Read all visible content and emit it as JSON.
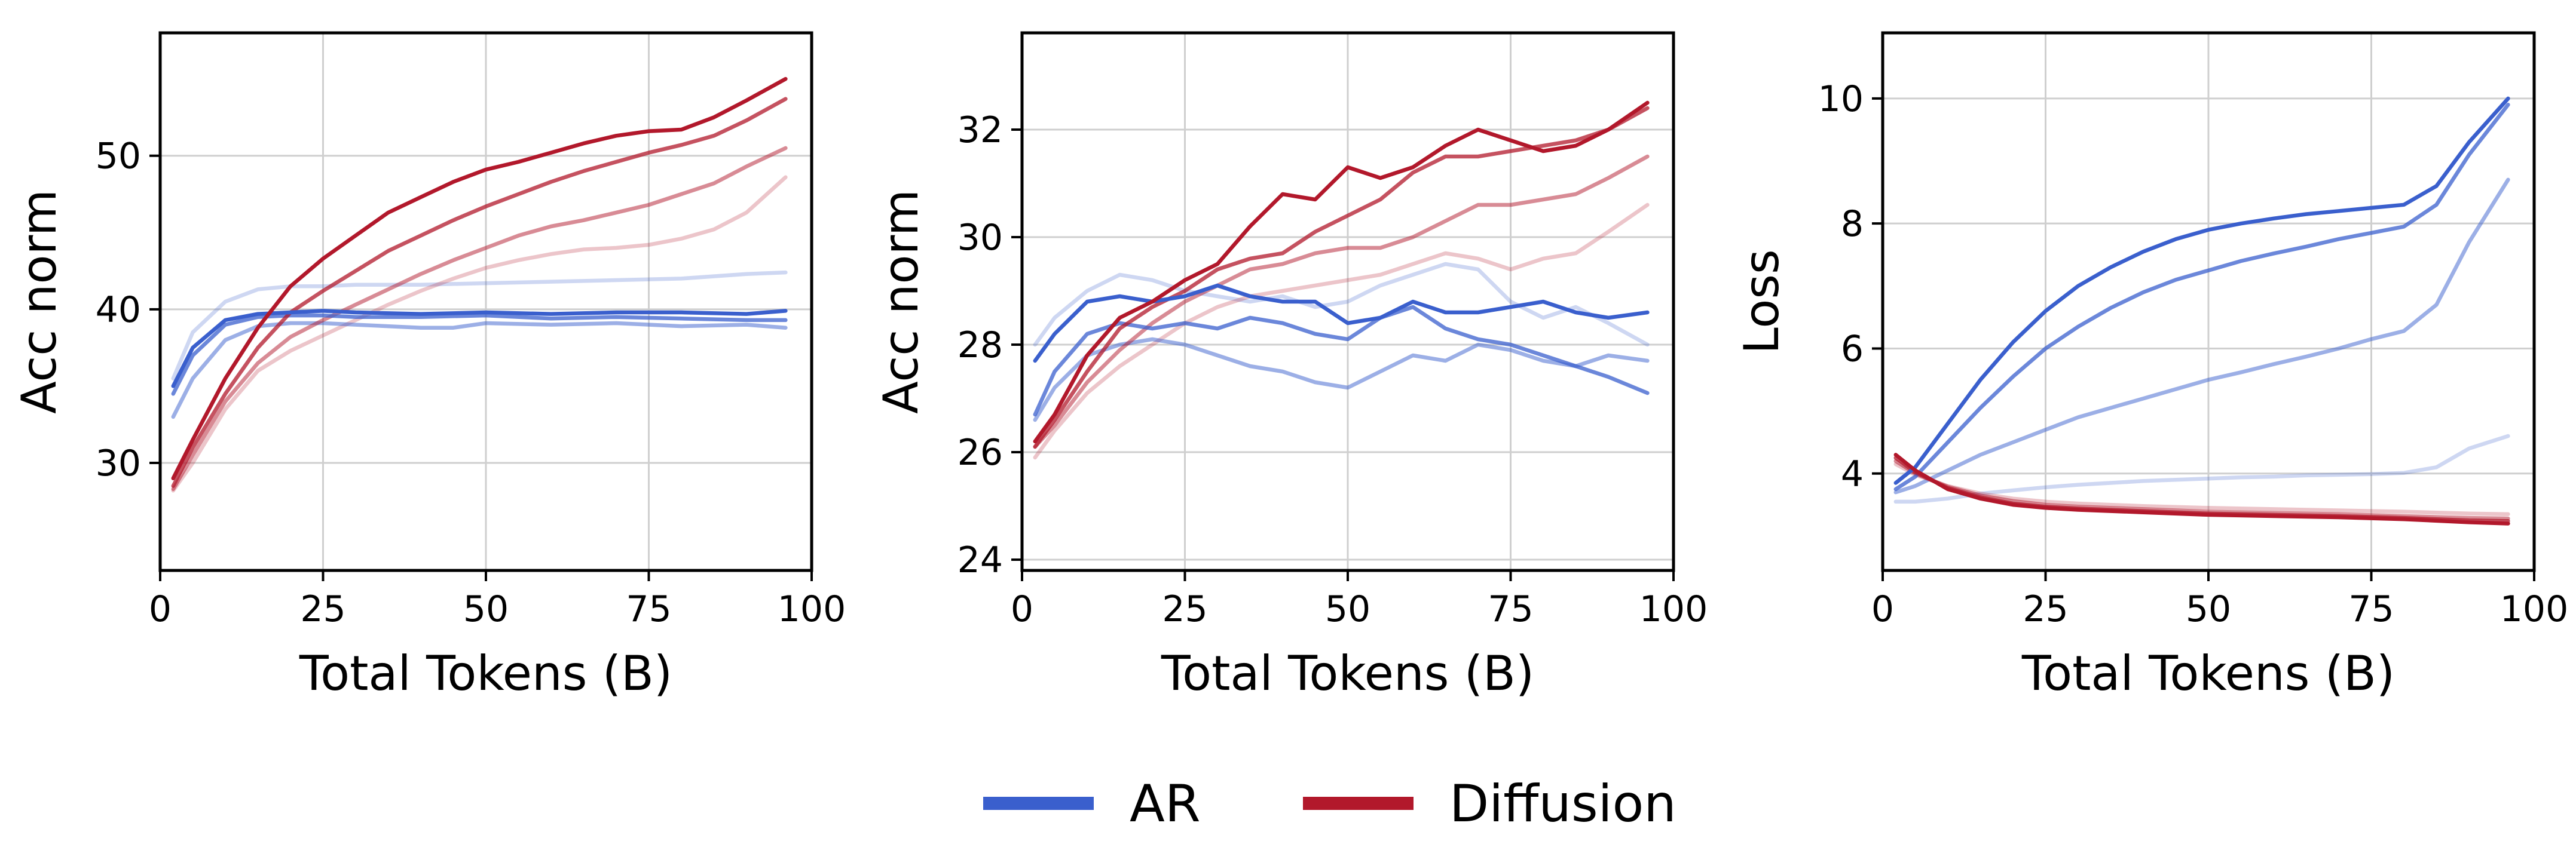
{
  "legend": {
    "entries": [
      {
        "label": "AR",
        "color": "#3a5fcd"
      },
      {
        "label": "Diffusion",
        "color": "#b2182b"
      }
    ],
    "placement": "bottom-center"
  },
  "chart_data": [
    {
      "type": "line",
      "xlabel": "Total Tokens (B)",
      "ylabel": "Acc norm",
      "xlim": [
        0,
        100
      ],
      "ylim": [
        23,
        58
      ],
      "xticks": [
        0,
        25,
        50,
        75,
        100
      ],
      "yticks": [
        30,
        40,
        50
      ],
      "grid": true,
      "series": [
        {
          "group": "AR",
          "color": "#3a5fcd",
          "opacity": 1.0,
          "x": [
            2,
            5,
            10,
            15,
            20,
            25,
            30,
            40,
            50,
            60,
            70,
            80,
            90,
            96
          ],
          "y": [
            35,
            37.5,
            39.3,
            39.7,
            39.8,
            39.9,
            39.8,
            39.7,
            39.8,
            39.7,
            39.8,
            39.8,
            39.7,
            39.9
          ]
        },
        {
          "group": "AR",
          "color": "#3a5fcd",
          "opacity": 0.75,
          "x": [
            2,
            5,
            10,
            15,
            20,
            25,
            30,
            40,
            50,
            60,
            70,
            80,
            90,
            96
          ],
          "y": [
            34.5,
            37,
            39,
            39.5,
            39.6,
            39.6,
            39.5,
            39.5,
            39.6,
            39.4,
            39.5,
            39.4,
            39.3,
            39.3
          ]
        },
        {
          "group": "AR",
          "color": "#3a5fcd",
          "opacity": 0.5,
          "x": [
            2,
            5,
            10,
            15,
            20,
            25,
            30,
            40,
            45,
            50,
            60,
            70,
            80,
            90,
            96
          ],
          "y": [
            33,
            35.5,
            38,
            38.9,
            39.1,
            39.1,
            39,
            38.8,
            38.8,
            39.1,
            39,
            39.1,
            38.9,
            39,
            38.8
          ]
        },
        {
          "group": "AR",
          "color": "#3a5fcd",
          "opacity": 0.25,
          "x": [
            2,
            5,
            10,
            15,
            20,
            25,
            30,
            40,
            50,
            60,
            70,
            80,
            90,
            96
          ],
          "y": [
            35.5,
            38.5,
            40.5,
            41.3,
            41.5,
            41.5,
            41.6,
            41.6,
            41.7,
            41.8,
            41.9,
            42,
            42.3,
            42.4
          ]
        },
        {
          "group": "Diffusion",
          "color": "#b2182b",
          "opacity": 1.0,
          "x": [
            2,
            5,
            10,
            15,
            20,
            25,
            30,
            35,
            40,
            45,
            50,
            55,
            60,
            65,
            70,
            75,
            80,
            85,
            90,
            96
          ],
          "y": [
            29,
            31.5,
            35.5,
            38.8,
            41.5,
            43.3,
            44.8,
            46.3,
            47.3,
            48.3,
            49.1,
            49.6,
            50.2,
            50.8,
            51.3,
            51.6,
            51.7,
            52.5,
            53.6,
            55
          ]
        },
        {
          "group": "Diffusion",
          "color": "#b2182b",
          "opacity": 0.75,
          "x": [
            2,
            5,
            10,
            15,
            20,
            25,
            30,
            35,
            40,
            45,
            50,
            55,
            60,
            65,
            70,
            75,
            80,
            85,
            90,
            96
          ],
          "y": [
            28.5,
            31,
            34.5,
            37.5,
            39.8,
            41.2,
            42.5,
            43.8,
            44.8,
            45.8,
            46.7,
            47.5,
            48.3,
            49,
            49.6,
            50.2,
            50.7,
            51.3,
            52.3,
            53.7
          ]
        },
        {
          "group": "Diffusion",
          "color": "#b2182b",
          "opacity": 0.5,
          "x": [
            2,
            5,
            10,
            15,
            20,
            25,
            30,
            35,
            40,
            45,
            50,
            55,
            60,
            65,
            70,
            75,
            80,
            85,
            90,
            96
          ],
          "y": [
            28.3,
            30.5,
            34,
            36.5,
            38.2,
            39.3,
            40.3,
            41.3,
            42.3,
            43.2,
            44,
            44.8,
            45.4,
            45.8,
            46.3,
            46.8,
            47.5,
            48.2,
            49.3,
            50.5
          ]
        },
        {
          "group": "Diffusion",
          "color": "#b2182b",
          "opacity": 0.25,
          "x": [
            2,
            5,
            10,
            15,
            20,
            25,
            30,
            35,
            40,
            45,
            50,
            55,
            60,
            65,
            70,
            75,
            80,
            85,
            90,
            96
          ],
          "y": [
            28.2,
            30,
            33.5,
            36,
            37.3,
            38.3,
            39.3,
            40.3,
            41.2,
            42,
            42.7,
            43.2,
            43.6,
            43.9,
            44,
            44.2,
            44.6,
            45.2,
            46.3,
            48.6
          ]
        }
      ]
    },
    {
      "type": "line",
      "xlabel": "Total Tokens (B)",
      "ylabel": "Acc norm",
      "xlim": [
        0,
        100
      ],
      "ylim": [
        23.8,
        33.8
      ],
      "xticks": [
        0,
        25,
        50,
        75,
        100
      ],
      "yticks": [
        24,
        26,
        28,
        30,
        32
      ],
      "grid": true,
      "series": [
        {
          "group": "AR",
          "color": "#3a5fcd",
          "opacity": 1.0,
          "x": [
            2,
            5,
            10,
            15,
            20,
            25,
            30,
            35,
            40,
            45,
            50,
            55,
            60,
            65,
            70,
            75,
            80,
            85,
            90,
            96
          ],
          "y": [
            27.7,
            28.2,
            28.8,
            28.9,
            28.8,
            28.9,
            29.1,
            28.9,
            28.8,
            28.8,
            28.4,
            28.5,
            28.8,
            28.6,
            28.6,
            28.7,
            28.8,
            28.6,
            28.5,
            28.6
          ]
        },
        {
          "group": "AR",
          "color": "#3a5fcd",
          "opacity": 0.75,
          "x": [
            2,
            5,
            10,
            15,
            20,
            25,
            30,
            35,
            40,
            45,
            50,
            55,
            60,
            65,
            70,
            75,
            80,
            85,
            90,
            96
          ],
          "y": [
            26.7,
            27.5,
            28.2,
            28.4,
            28.3,
            28.4,
            28.3,
            28.5,
            28.4,
            28.2,
            28.1,
            28.5,
            28.7,
            28.3,
            28.1,
            28,
            27.8,
            27.6,
            27.4,
            27.1
          ]
        },
        {
          "group": "AR",
          "color": "#3a5fcd",
          "opacity": 0.5,
          "x": [
            2,
            5,
            10,
            15,
            20,
            25,
            30,
            35,
            40,
            45,
            50,
            55,
            60,
            65,
            70,
            75,
            80,
            85,
            90,
            96
          ],
          "y": [
            26.6,
            27.2,
            27.8,
            28,
            28.1,
            28,
            27.8,
            27.6,
            27.5,
            27.3,
            27.2,
            27.5,
            27.8,
            27.7,
            28,
            27.9,
            27.7,
            27.6,
            27.8,
            27.7
          ]
        },
        {
          "group": "AR",
          "color": "#3a5fcd",
          "opacity": 0.25,
          "x": [
            2,
            5,
            10,
            15,
            20,
            25,
            30,
            35,
            40,
            45,
            50,
            55,
            60,
            65,
            70,
            75,
            80,
            85,
            90,
            96
          ],
          "y": [
            28,
            28.5,
            29,
            29.3,
            29.2,
            29,
            28.9,
            28.8,
            28.9,
            28.7,
            28.8,
            29.1,
            29.3,
            29.5,
            29.4,
            28.8,
            28.5,
            28.7,
            28.4,
            28
          ]
        },
        {
          "group": "Diffusion",
          "color": "#b2182b",
          "opacity": 1.0,
          "x": [
            2,
            5,
            10,
            15,
            20,
            25,
            30,
            35,
            40,
            45,
            50,
            55,
            60,
            65,
            70,
            75,
            80,
            85,
            90,
            96
          ],
          "y": [
            26.2,
            26.7,
            27.8,
            28.5,
            28.8,
            29.2,
            29.5,
            30.2,
            30.8,
            30.7,
            31.3,
            31.1,
            31.3,
            31.7,
            32,
            31.8,
            31.6,
            31.7,
            32,
            32.5
          ]
        },
        {
          "group": "Diffusion",
          "color": "#b2182b",
          "opacity": 0.75,
          "x": [
            2,
            5,
            10,
            15,
            20,
            25,
            30,
            35,
            40,
            45,
            50,
            55,
            60,
            65,
            70,
            75,
            80,
            85,
            90,
            96
          ],
          "y": [
            26.1,
            26.6,
            27.5,
            28.3,
            28.7,
            29,
            29.4,
            29.6,
            29.7,
            30.1,
            30.4,
            30.7,
            31.2,
            31.5,
            31.5,
            31.6,
            31.7,
            31.8,
            32,
            32.4
          ]
        },
        {
          "group": "Diffusion",
          "color": "#b2182b",
          "opacity": 0.5,
          "x": [
            2,
            5,
            10,
            15,
            20,
            25,
            30,
            35,
            40,
            45,
            50,
            55,
            60,
            65,
            70,
            75,
            80,
            85,
            90,
            96
          ],
          "y": [
            26.1,
            26.5,
            27.3,
            27.9,
            28.4,
            28.8,
            29.1,
            29.4,
            29.5,
            29.7,
            29.8,
            29.8,
            30,
            30.3,
            30.6,
            30.6,
            30.7,
            30.8,
            31.1,
            31.5
          ]
        },
        {
          "group": "Diffusion",
          "color": "#b2182b",
          "opacity": 0.25,
          "x": [
            2,
            5,
            10,
            15,
            20,
            25,
            30,
            35,
            40,
            45,
            50,
            55,
            60,
            65,
            70,
            75,
            80,
            85,
            90,
            96
          ],
          "y": [
            25.9,
            26.4,
            27.1,
            27.6,
            28,
            28.4,
            28.7,
            28.9,
            29,
            29.1,
            29.2,
            29.3,
            29.5,
            29.7,
            29.6,
            29.4,
            29.6,
            29.7,
            30.1,
            30.6
          ]
        }
      ]
    },
    {
      "type": "line",
      "xlabel": "Total Tokens (B)",
      "ylabel": "Loss",
      "xlim": [
        0,
        100
      ],
      "ylim": [
        2.45,
        11.05
      ],
      "xticks": [
        0,
        25,
        50,
        75,
        100
      ],
      "yticks": [
        4,
        6,
        8,
        10
      ],
      "grid": true,
      "series": [
        {
          "group": "AR",
          "color": "#3a5fcd",
          "opacity": 1.0,
          "x": [
            2,
            5,
            10,
            15,
            20,
            25,
            30,
            35,
            40,
            45,
            50,
            55,
            60,
            65,
            70,
            75,
            80,
            85,
            90,
            96
          ],
          "y": [
            3.85,
            4.1,
            4.8,
            5.5,
            6.1,
            6.6,
            7,
            7.3,
            7.55,
            7.75,
            7.9,
            8,
            8.08,
            8.15,
            8.2,
            8.25,
            8.3,
            8.6,
            9.3,
            10
          ]
        },
        {
          "group": "AR",
          "color": "#3a5fcd",
          "opacity": 0.75,
          "x": [
            2,
            5,
            10,
            15,
            20,
            25,
            30,
            35,
            40,
            45,
            50,
            55,
            60,
            65,
            70,
            75,
            80,
            85,
            90,
            96
          ],
          "y": [
            3.75,
            3.95,
            4.5,
            5.05,
            5.55,
            6,
            6.35,
            6.65,
            6.9,
            7.1,
            7.25,
            7.4,
            7.52,
            7.63,
            7.75,
            7.85,
            7.95,
            8.3,
            9.1,
            9.9
          ]
        },
        {
          "group": "AR",
          "color": "#3a5fcd",
          "opacity": 0.5,
          "x": [
            2,
            5,
            10,
            15,
            20,
            25,
            30,
            35,
            40,
            45,
            50,
            55,
            60,
            65,
            70,
            75,
            80,
            85,
            90,
            96
          ],
          "y": [
            3.7,
            3.8,
            4.05,
            4.3,
            4.5,
            4.7,
            4.9,
            5.05,
            5.2,
            5.35,
            5.5,
            5.62,
            5.75,
            5.87,
            6.0,
            6.15,
            6.28,
            6.7,
            7.7,
            8.7
          ]
        },
        {
          "group": "AR",
          "color": "#3a5fcd",
          "opacity": 0.25,
          "x": [
            2,
            5,
            10,
            15,
            20,
            25,
            30,
            35,
            40,
            45,
            50,
            55,
            60,
            65,
            70,
            75,
            80,
            85,
            90,
            96
          ],
          "y": [
            3.55,
            3.55,
            3.6,
            3.68,
            3.73,
            3.78,
            3.82,
            3.85,
            3.88,
            3.9,
            3.92,
            3.94,
            3.95,
            3.97,
            3.98,
            3.99,
            4.01,
            4.1,
            4.4,
            4.6
          ]
        },
        {
          "group": "Diffusion",
          "color": "#b2182b",
          "opacity": 1.0,
          "x": [
            2,
            5,
            10,
            15,
            20,
            25,
            30,
            40,
            50,
            60,
            70,
            80,
            90,
            96
          ],
          "y": [
            4.3,
            4.05,
            3.75,
            3.6,
            3.5,
            3.45,
            3.42,
            3.38,
            3.34,
            3.32,
            3.3,
            3.27,
            3.22,
            3.2
          ]
        },
        {
          "group": "Diffusion",
          "color": "#b2182b",
          "opacity": 0.75,
          "x": [
            2,
            5,
            10,
            15,
            20,
            25,
            30,
            40,
            50,
            60,
            70,
            80,
            90,
            96
          ],
          "y": [
            4.25,
            4.02,
            3.77,
            3.62,
            3.52,
            3.47,
            3.44,
            3.4,
            3.36,
            3.34,
            3.32,
            3.29,
            3.25,
            3.24
          ]
        },
        {
          "group": "Diffusion",
          "color": "#b2182b",
          "opacity": 0.5,
          "x": [
            2,
            5,
            10,
            15,
            20,
            25,
            30,
            40,
            50,
            60,
            70,
            80,
            90,
            96
          ],
          "y": [
            4.2,
            4.0,
            3.79,
            3.65,
            3.56,
            3.5,
            3.47,
            3.43,
            3.39,
            3.37,
            3.35,
            3.32,
            3.29,
            3.28
          ]
        },
        {
          "group": "Diffusion",
          "color": "#b2182b",
          "opacity": 0.25,
          "x": [
            2,
            5,
            10,
            15,
            20,
            25,
            30,
            40,
            50,
            60,
            70,
            80,
            90,
            96
          ],
          "y": [
            4.15,
            3.98,
            3.8,
            3.68,
            3.6,
            3.55,
            3.52,
            3.48,
            3.45,
            3.43,
            3.41,
            3.39,
            3.36,
            3.35
          ]
        }
      ]
    }
  ]
}
